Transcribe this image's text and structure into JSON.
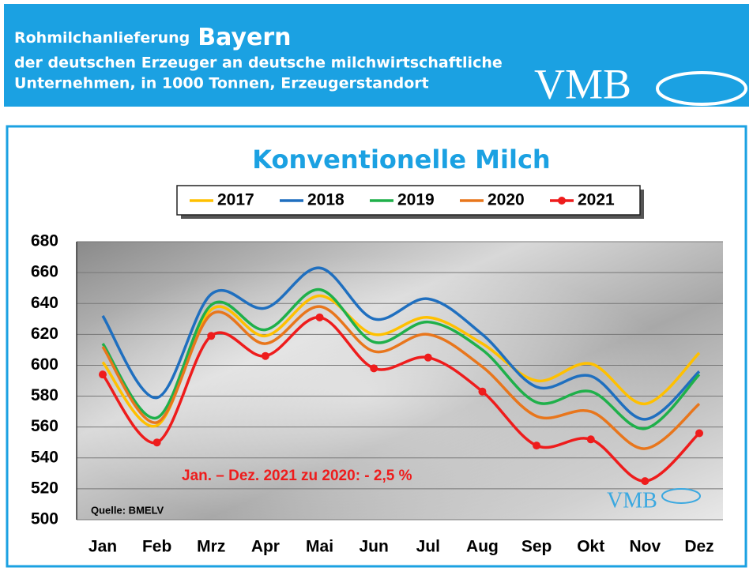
{
  "header": {
    "title_prefix": "Rohmilchanlieferung",
    "region": "Bayern",
    "subtitle_lines": [
      "der deutschen Erzeuger an deutsche milchwirtschaftliche",
      "Unternehmen, in 1000 Tonnen, Erzeugerstandort"
    ],
    "logo": "VMB"
  },
  "chart_data": {
    "type": "line",
    "title": "Konventionelle Milch",
    "categories": [
      "Jan",
      "Feb",
      "Mrz",
      "Apr",
      "Mai",
      "Jun",
      "Jul",
      "Aug",
      "Sep",
      "Okt",
      "Nov",
      "Dez"
    ],
    "series": [
      {
        "name": "2017",
        "color": "#ffc000",
        "values": [
          602,
          561,
          636,
          619,
          645,
          620,
          631,
          614,
          590,
          601,
          575,
          608
        ]
      },
      {
        "name": "2018",
        "color": "#1f6fbf",
        "values": [
          632,
          579,
          646,
          637,
          663,
          630,
          643,
          620,
          586,
          593,
          565,
          596
        ]
      },
      {
        "name": "2019",
        "color": "#1fb04a",
        "values": [
          614,
          566,
          639,
          623,
          649,
          615,
          628,
          610,
          576,
          583,
          559,
          594
        ]
      },
      {
        "name": "2020",
        "color": "#e8761c",
        "values": [
          612,
          563,
          633,
          614,
          638,
          609,
          620,
          599,
          567,
          570,
          546,
          575
        ]
      },
      {
        "name": "2021",
        "color": "#ee1c1c",
        "markers": true,
        "values": [
          594,
          550,
          619,
          606,
          631,
          598,
          605,
          583,
          548,
          552,
          525,
          556
        ]
      }
    ],
    "ylim": [
      500,
      680
    ],
    "yticks": [
      500,
      520,
      540,
      560,
      580,
      600,
      620,
      640,
      660,
      680
    ],
    "grid": true,
    "annotation": "Jan. – Dez. 2021 zu 2020: - 2,5 %",
    "source": "Quelle: BMELV"
  }
}
